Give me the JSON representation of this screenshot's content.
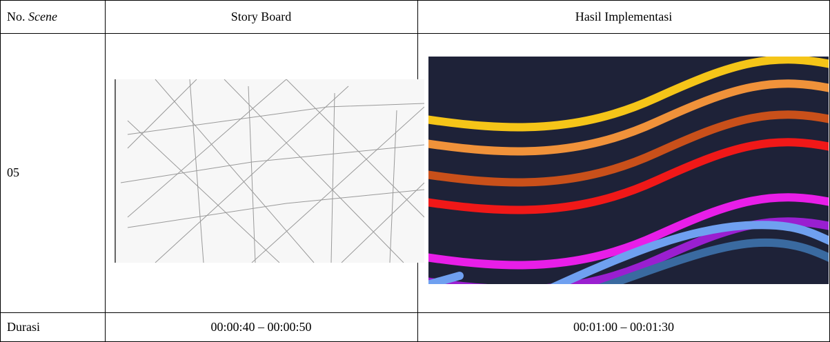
{
  "header": {
    "no_label": "No.",
    "no_italic": "Scene",
    "story_board": "Story Board",
    "implementation": "Hasil Implementasi"
  },
  "rows": [
    [
      "05"
    ],
    [
      "Durasi",
      "00:00:40 – 00:00:50",
      "00:01:00 – 00:01:30"
    ]
  ]
}
